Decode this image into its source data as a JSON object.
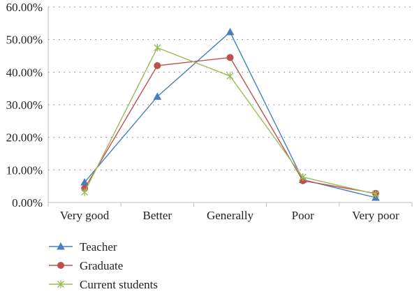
{
  "chart_data": {
    "type": "line",
    "categories": [
      "Very good",
      "Better",
      "Generally",
      "Poor",
      "Very poor"
    ],
    "ylim": [
      0,
      60
    ],
    "yticks": [
      0,
      10,
      20,
      30,
      40,
      50,
      60
    ],
    "ytick_labels": [
      "0.00%",
      "10.00%",
      "20.00%",
      "30.00%",
      "40.00%",
      "50.00%",
      "60.00%"
    ],
    "grid": "horizontal dotted",
    "legend_position": "bottom-left",
    "series": [
      {
        "name": "Teacher",
        "values": [
          6.2,
          32.5,
          52.3,
          7.0,
          1.5
        ],
        "color": "#4a7ebb",
        "marker": "triangle"
      },
      {
        "name": "Graduate",
        "values": [
          4.3,
          42.0,
          44.5,
          6.7,
          2.8
        ],
        "color": "#c0504d",
        "marker": "circle"
      },
      {
        "name": "Current students",
        "values": [
          3.2,
          47.5,
          38.8,
          7.8,
          2.6
        ],
        "color": "#9bbb59",
        "marker": "star"
      }
    ]
  }
}
